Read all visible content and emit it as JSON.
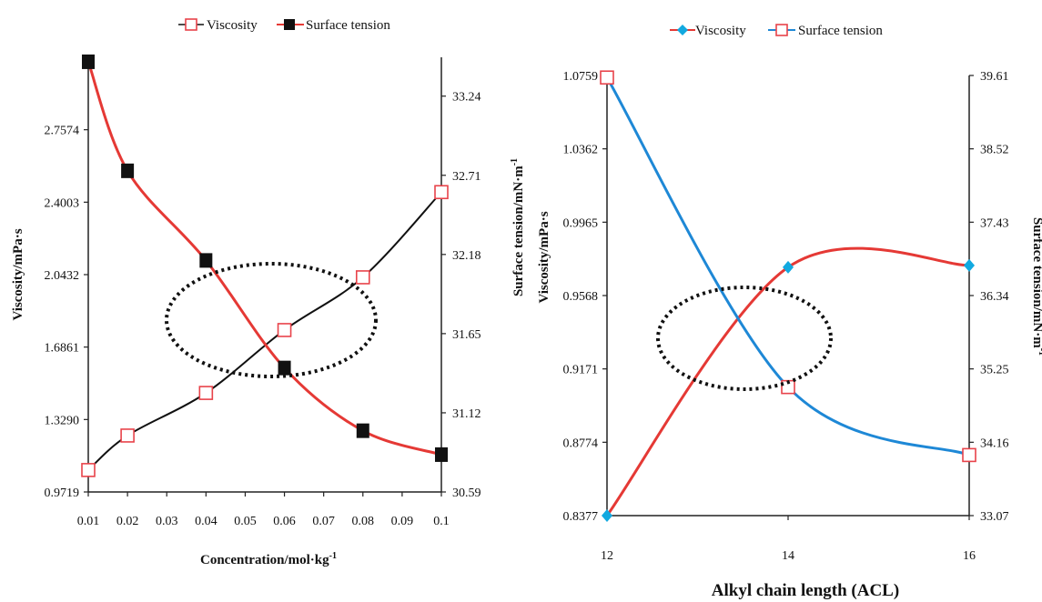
{
  "colors": {
    "red": "#e53935",
    "black": "#111111",
    "blue": "#1e88d6",
    "cyan_marker": "#12a9e0",
    "open_marker": "#e8434a"
  },
  "chart_data": [
    {
      "type": "line",
      "x_label": "Concentration/mol·kg",
      "x_label_sup": "-1",
      "y_label_left": "Viscosity/mPa·s",
      "y_label_right": "Surface tension/mN·m",
      "y_label_right_sup": "-1",
      "x_ticks": [
        "0.01",
        "0.02",
        "0.03",
        "0.04",
        "0.05",
        "0.06",
        "0.07",
        "0.08",
        "0.09",
        "0.1"
      ],
      "xlim": [
        0.01,
        0.1
      ],
      "ylim_left": [
        0.9719,
        3.1145
      ],
      "ylim_right": [
        30.59,
        33.5
      ],
      "y_ticks_left": [
        "0.9719",
        "1.3290",
        "1.6861",
        "2.0432",
        "2.4003",
        "2.7574"
      ],
      "y_ticks_right": [
        "30.59",
        "31.12",
        "31.65",
        "32.18",
        "32.71",
        "33.24"
      ],
      "legend": [
        "Viscosity",
        "Surface tension"
      ],
      "series": [
        {
          "name": "Viscosity",
          "axis": "left",
          "marker": "open-square",
          "line_color": "black",
          "x": [
            0.01,
            0.02,
            0.04,
            0.06,
            0.08,
            0.1
          ],
          "y": [
            1.08,
            1.25,
            1.46,
            1.77,
            2.03,
            2.45
          ]
        },
        {
          "name": "Surface tension",
          "axis": "right",
          "marker": "filled-square",
          "line_color": "red",
          "x": [
            0.01,
            0.02,
            0.04,
            0.06,
            0.08,
            0.1
          ],
          "y": [
            33.47,
            32.74,
            32.14,
            31.42,
            31.0,
            30.84
          ]
        }
      ]
    },
    {
      "type": "line",
      "x_label": "Alkyl chain length (ACL)",
      "y_label_left": "Viscosity/mPa·s",
      "y_label_left_extra": "Surface tension/mN·m",
      "y_label_left_extra_sup": "-1",
      "y_label_right": "Surface tension/mN·m",
      "y_label_right_sup": "-1",
      "x_ticks": [
        "12",
        "14",
        "16"
      ],
      "xlim": [
        12,
        16
      ],
      "ylim_left": [
        0.8377,
        1.0759
      ],
      "ylim_right": [
        33.07,
        39.61
      ],
      "y_ticks_left": [
        "0.8377",
        "0.8774",
        "0.9171",
        "0.9568",
        "0.9965",
        "1.0362",
        "1.0759"
      ],
      "y_ticks_right": [
        "33.07",
        "34.16",
        "35.25",
        "36.34",
        "37.43",
        "38.52",
        "39.61"
      ],
      "legend": [
        "Viscosity",
        "Surface tension"
      ],
      "series": [
        {
          "name": "Viscosity",
          "axis": "left",
          "marker": "filled-diamond",
          "line_color": "red",
          "x": [
            12,
            14,
            16
          ],
          "y": [
            0.8377,
            0.9721,
            0.9731
          ]
        },
        {
          "name": "Surface tension",
          "axis": "right",
          "marker": "open-square",
          "line_color": "blue",
          "x": [
            12,
            14,
            16
          ],
          "y": [
            39.58,
            34.98,
            33.97
          ]
        }
      ]
    }
  ]
}
